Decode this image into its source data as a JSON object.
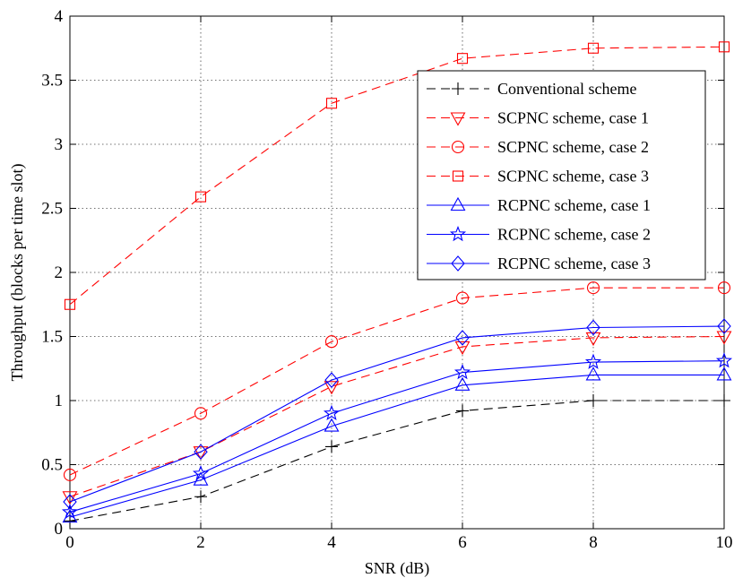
{
  "chart_data": {
    "type": "line",
    "title": "",
    "xlabel": "SNR (dB)",
    "ylabel": "Throughput (blocks per time slot)",
    "xlim": [
      0,
      10
    ],
    "ylim": [
      0,
      4
    ],
    "xticks": [
      0,
      2,
      4,
      6,
      8,
      10
    ],
    "yticks": [
      0,
      0.5,
      1,
      1.5,
      2,
      2.5,
      3,
      3.5,
      4
    ],
    "xtick_labels": [
      "0",
      "2",
      "4",
      "6",
      "8",
      "10"
    ],
    "ytick_labels": [
      "0",
      "0.5",
      "1",
      "1.5",
      "2",
      "2.5",
      "3",
      "3.5",
      "4"
    ],
    "grid": true,
    "legend_position": "top-right",
    "x": [
      0,
      2,
      4,
      6,
      8,
      10
    ],
    "series": [
      {
        "name": "Conventional scheme",
        "color": "#000000",
        "dash": "dashed",
        "marker": "plus",
        "values": [
          0.06,
          0.25,
          0.64,
          0.92,
          1.0,
          1.0
        ]
      },
      {
        "name": "SCPNC scheme, case 1",
        "color": "#ff0000",
        "dash": "dashed",
        "marker": "triangle-down",
        "values": [
          0.25,
          0.6,
          1.11,
          1.42,
          1.49,
          1.5
        ]
      },
      {
        "name": "SCPNC scheme, case 2",
        "color": "#ff0000",
        "dash": "dashed",
        "marker": "circle",
        "values": [
          0.42,
          0.9,
          1.46,
          1.8,
          1.88,
          1.88
        ]
      },
      {
        "name": "SCPNC scheme, case 3",
        "color": "#ff0000",
        "dash": "dashed",
        "marker": "square",
        "values": [
          1.75,
          2.59,
          3.32,
          3.67,
          3.75,
          3.76
        ]
      },
      {
        "name": "RCPNC scheme, case 1",
        "color": "#0000ff",
        "dash": "solid",
        "marker": "triangle-up",
        "values": [
          0.09,
          0.38,
          0.8,
          1.12,
          1.2,
          1.2
        ]
      },
      {
        "name": "RCPNC scheme, case 2",
        "color": "#0000ff",
        "dash": "solid",
        "marker": "star",
        "values": [
          0.13,
          0.43,
          0.9,
          1.22,
          1.3,
          1.31
        ]
      },
      {
        "name": "RCPNC scheme, case 3",
        "color": "#0000ff",
        "dash": "solid",
        "marker": "diamond",
        "values": [
          0.21,
          0.6,
          1.16,
          1.49,
          1.57,
          1.58
        ]
      }
    ]
  }
}
